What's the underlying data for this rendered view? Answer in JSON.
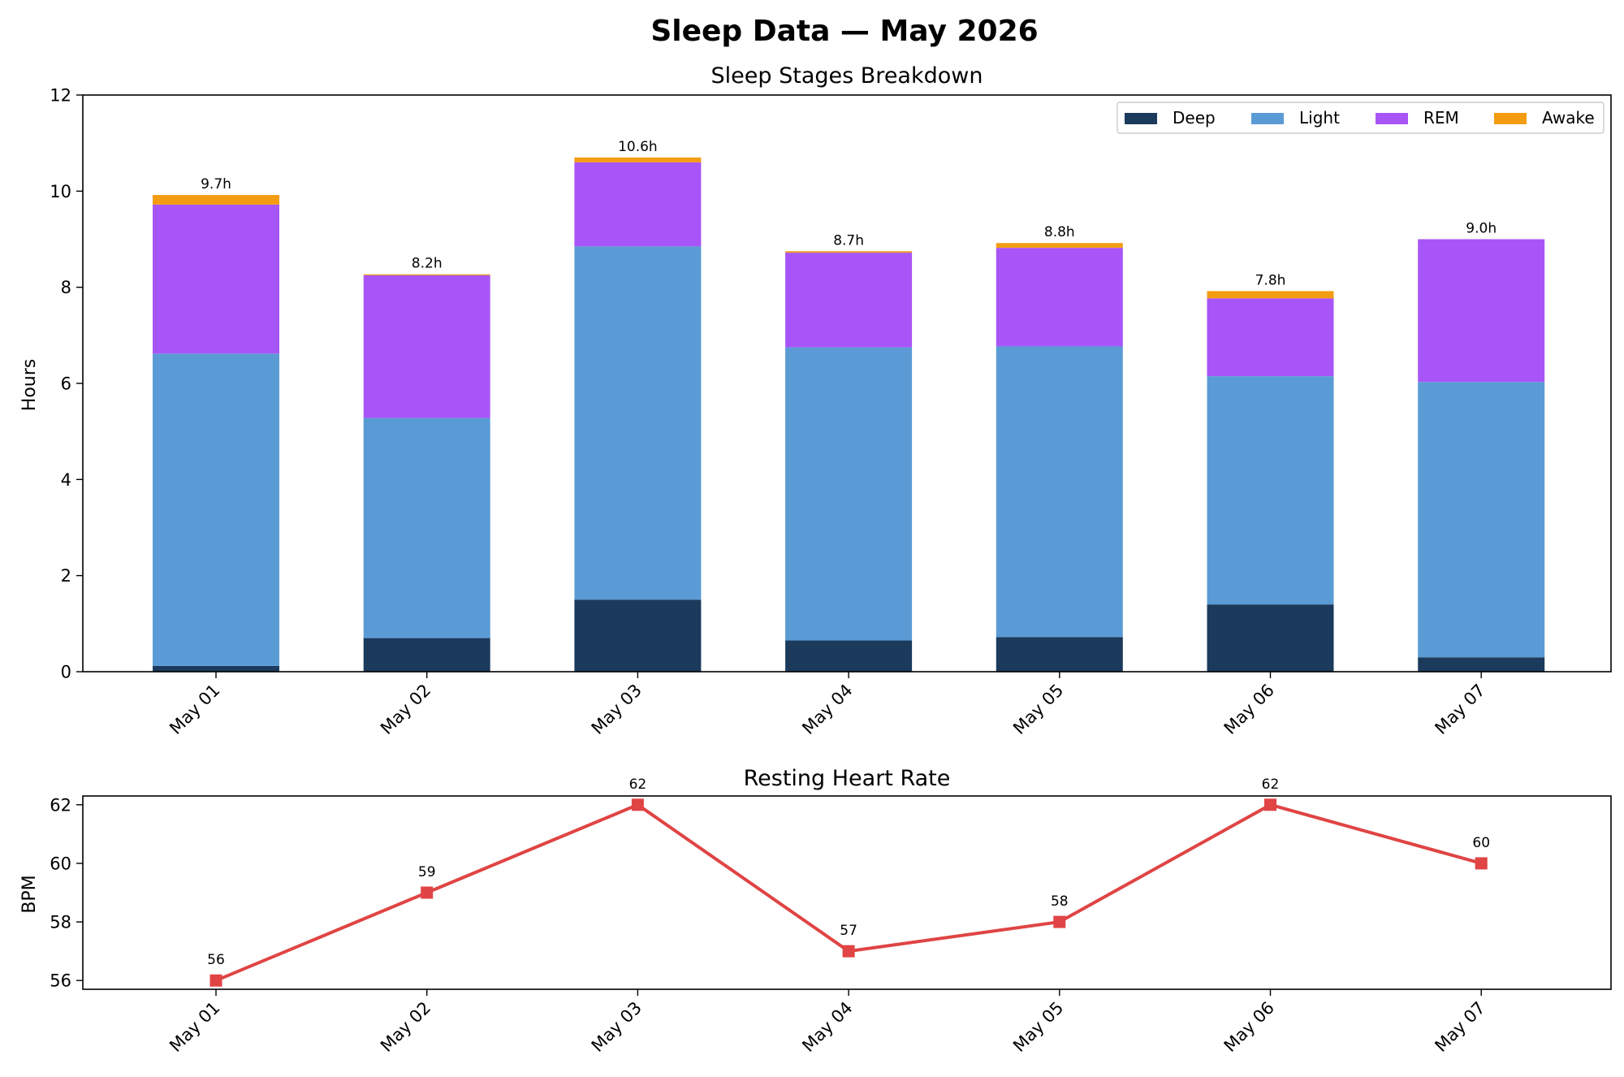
{
  "suptitle": "Sleep Data — May 2026",
  "colors": {
    "deep": "#1b3a5c",
    "light": "#5b9bd5",
    "rem": "#a855f7",
    "awake": "#f39c12",
    "hr_line": "#e04444"
  },
  "chart_data": [
    {
      "type": "bar",
      "stacked": true,
      "title": "Sleep Stages Breakdown",
      "xlabel": "",
      "ylabel": "Hours",
      "ylim": [
        0,
        12
      ],
      "yticks": [
        0,
        2,
        4,
        6,
        8,
        10,
        12
      ],
      "categories": [
        "May 01",
        "May 02",
        "May 03",
        "May 04",
        "May 05",
        "May 06",
        "May 07"
      ],
      "series": [
        {
          "name": "Deep",
          "color_key": "deep",
          "values": [
            0.12,
            0.7,
            1.5,
            0.65,
            0.72,
            1.4,
            0.3
          ]
        },
        {
          "name": "Light",
          "color_key": "light",
          "values": [
            6.5,
            4.58,
            7.35,
            6.1,
            6.05,
            4.75,
            5.73
          ]
        },
        {
          "name": "REM",
          "color_key": "rem",
          "values": [
            3.1,
            2.97,
            1.75,
            1.97,
            2.05,
            1.62,
            2.97
          ]
        },
        {
          "name": "Awake",
          "color_key": "awake",
          "values": [
            0.2,
            0.02,
            0.1,
            0.03,
            0.1,
            0.15,
            0.0
          ]
        }
      ],
      "data_labels": [
        "9.7h",
        "8.2h",
        "10.6h",
        "8.7h",
        "8.8h",
        "7.8h",
        "9.0h"
      ],
      "legend": {
        "placement": "top-right",
        "entries": [
          "Deep",
          "Light",
          "REM",
          "Awake"
        ]
      },
      "grid": false
    },
    {
      "type": "line",
      "title": "Resting Heart Rate",
      "xlabel": "",
      "ylabel": "BPM",
      "ylim": [
        55.7,
        62.3
      ],
      "yticks": [
        56,
        58,
        60,
        62
      ],
      "categories": [
        "May 01",
        "May 02",
        "May 03",
        "May 04",
        "May 05",
        "May 06",
        "May 07"
      ],
      "series": [
        {
          "name": "",
          "color_key": "hr_line",
          "marker": "square",
          "values": [
            56,
            59,
            62,
            57,
            58,
            62,
            60
          ]
        }
      ],
      "data_labels": [
        "56",
        "59",
        "62",
        "57",
        "58",
        "62",
        "60"
      ],
      "grid": false
    }
  ]
}
